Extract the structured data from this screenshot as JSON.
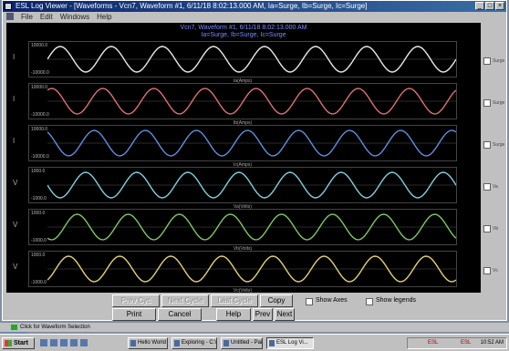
{
  "window": {
    "title": "ESL Log Viewer - [Waveforms - Vcn7, Waveform #1, 6/11/18 8:02:13.000 AM, Ia=Surge, Ib=Surge, Ic=Surge]",
    "menu": [
      "File",
      "Edit",
      "Windows",
      "Help"
    ]
  },
  "plot": {
    "header_line1": "Vcn7, Waveform #1, 6/11/18 8:02:13.000 AM",
    "header_line2": "Ia=Surge, Ib=Surge, Ic=Surge",
    "channels": [
      {
        "label": "I",
        "color": "#e8e8e8",
        "ymax": "10000.0",
        "ymin": "-10000.0",
        "xcaption": "Ia(Amps)",
        "side_label": "Surge"
      },
      {
        "label": "I",
        "color": "#e07070",
        "ymax": "10000.0",
        "ymin": "-10000.0",
        "xcaption": "Ib(Amps)",
        "side_label": "Surge"
      },
      {
        "label": "I",
        "color": "#5f8fe0",
        "ymax": "10000.0",
        "ymin": "-10000.0",
        "xcaption": "Ic(Amps)",
        "side_label": "Surge"
      },
      {
        "label": "V",
        "color": "#7fd0e0",
        "ymax": "1000.0",
        "ymin": "-1000.0",
        "xcaption": "Va(Volts)",
        "side_label": "Va"
      },
      {
        "label": "V",
        "color": "#80c860",
        "ymax": "1000.0",
        "ymin": "-1000.0",
        "xcaption": "Vb(Volts)",
        "side_label": "Vb"
      },
      {
        "label": "V",
        "color": "#e0d070",
        "ymax": "1000.0",
        "ymin": "-1000.0",
        "xcaption": "Vc(Volts)",
        "side_label": "Vc"
      }
    ]
  },
  "buttons": {
    "row1": [
      "Prev Cyc",
      "Next Cycle",
      "Last Cycle",
      "Copy"
    ],
    "row2": [
      "Print",
      "Cancel",
      "Help",
      "Prev",
      "Next"
    ],
    "show_axes": "Show Axes",
    "show_legends": "Show legends"
  },
  "status": {
    "text": "Click for Waveform Selection"
  },
  "taskbar": {
    "start": "Start",
    "tasks": [
      "Hello World Cont...",
      "Exploring - C:\\",
      "Untitled - Paint",
      "ESL Log Vi..."
    ],
    "tray_1": "ESL",
    "tray_2": "ESL",
    "clock": "10:52 AM"
  }
}
